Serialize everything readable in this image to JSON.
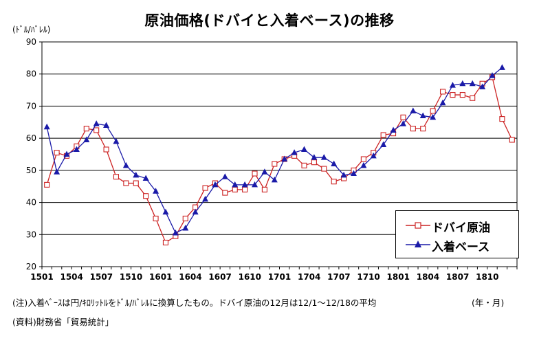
{
  "chart_data": {
    "type": "line",
    "title": "原油価格(ドバイと入着ベース)の推移",
    "ylabel": "(ﾄﾞﾙ/ﾊﾞﾚﾙ)",
    "xlabel": "(年・月)",
    "ylim": [
      20,
      90
    ],
    "yticks": [
      20,
      30,
      40,
      50,
      60,
      70,
      80,
      90
    ],
    "grid": true,
    "legend_position": "bottom-right",
    "x_tick_labels": [
      "1501",
      "1504",
      "1507",
      "1510",
      "1601",
      "1604",
      "1607",
      "1610",
      "1701",
      "1704",
      "1707",
      "1710",
      "1801",
      "1804",
      "1807",
      "1810"
    ],
    "series": [
      {
        "name": "ドバイ原油",
        "color": "#cc2222",
        "marker": "square",
        "values": [
          45.5,
          55.5,
          54.5,
          57.5,
          63,
          62.5,
          56.5,
          48,
          46,
          46,
          42,
          35,
          27.5,
          29.5,
          35,
          38.5,
          44.5,
          46,
          43,
          44,
          44,
          49,
          44,
          52,
          53.5,
          54.5,
          51.5,
          52.5,
          50.5,
          46.5,
          47.5,
          50,
          53.5,
          55.5,
          61,
          61.5,
          66.5,
          63,
          63,
          68.5,
          74.5,
          73.5,
          73.5,
          72.5,
          77,
          79,
          66,
          59.5
        ]
      },
      {
        "name": "入着ベース",
        "color": "#1a1aa8",
        "marker": "triangle",
        "values": [
          63.5,
          49.5,
          55,
          56.5,
          59.5,
          64.5,
          64,
          59,
          51.5,
          48.5,
          47.5,
          43.5,
          37,
          30.5,
          32,
          37,
          41,
          45.5,
          48,
          45.5,
          45.5,
          45.5,
          49.5,
          47,
          53.5,
          55.5,
          56.5,
          54,
          54,
          52,
          48.5,
          49,
          51.5,
          54.5,
          58,
          62.5,
          64.5,
          68.5,
          67,
          66.5,
          71,
          76.5,
          77,
          77,
          76,
          79.5,
          82
        ]
      }
    ]
  },
  "note": "(注)入着ﾍﾞｰｽは円/ｷﾛﾘｯﾄﾙをﾄﾞﾙ/ﾊﾞﾚﾙに換算したもの。ドバイ原油の12月は12/1～12/18の平均",
  "source": "(資料)財務省「貿易統計」"
}
